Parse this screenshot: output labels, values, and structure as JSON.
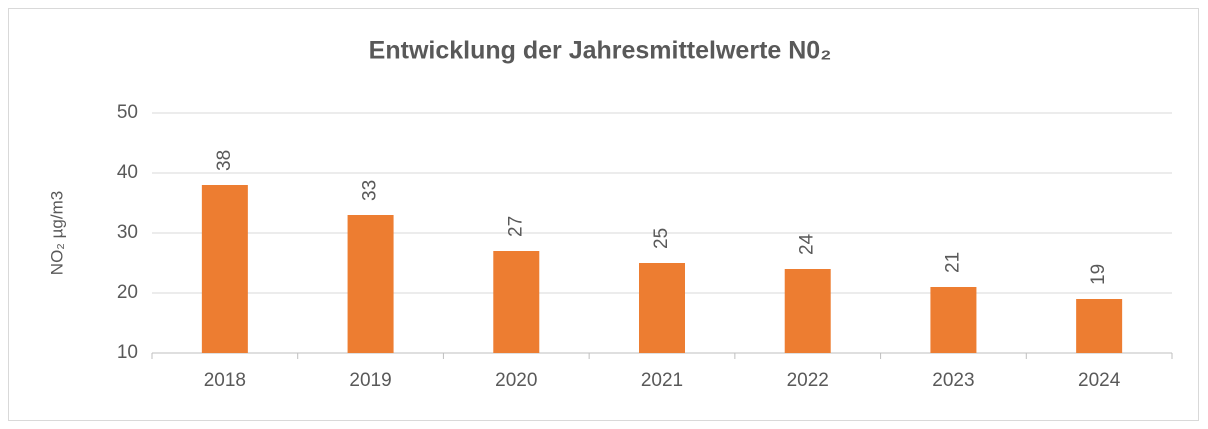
{
  "chart_data": {
    "type": "bar",
    "title": "Entwicklung der Jahresmittelwerte N0₂",
    "y_label": "NO₂ µg/m3",
    "categories": [
      "2018",
      "2019",
      "2020",
      "2021",
      "2022",
      "2023",
      "2024"
    ],
    "values": [
      38,
      33,
      27,
      25,
      24,
      21,
      19
    ],
    "color": "#ed7d31",
    "ylim": [
      10,
      50
    ],
    "yticks": [
      10,
      20,
      30,
      40,
      50
    ],
    "grid": true
  }
}
